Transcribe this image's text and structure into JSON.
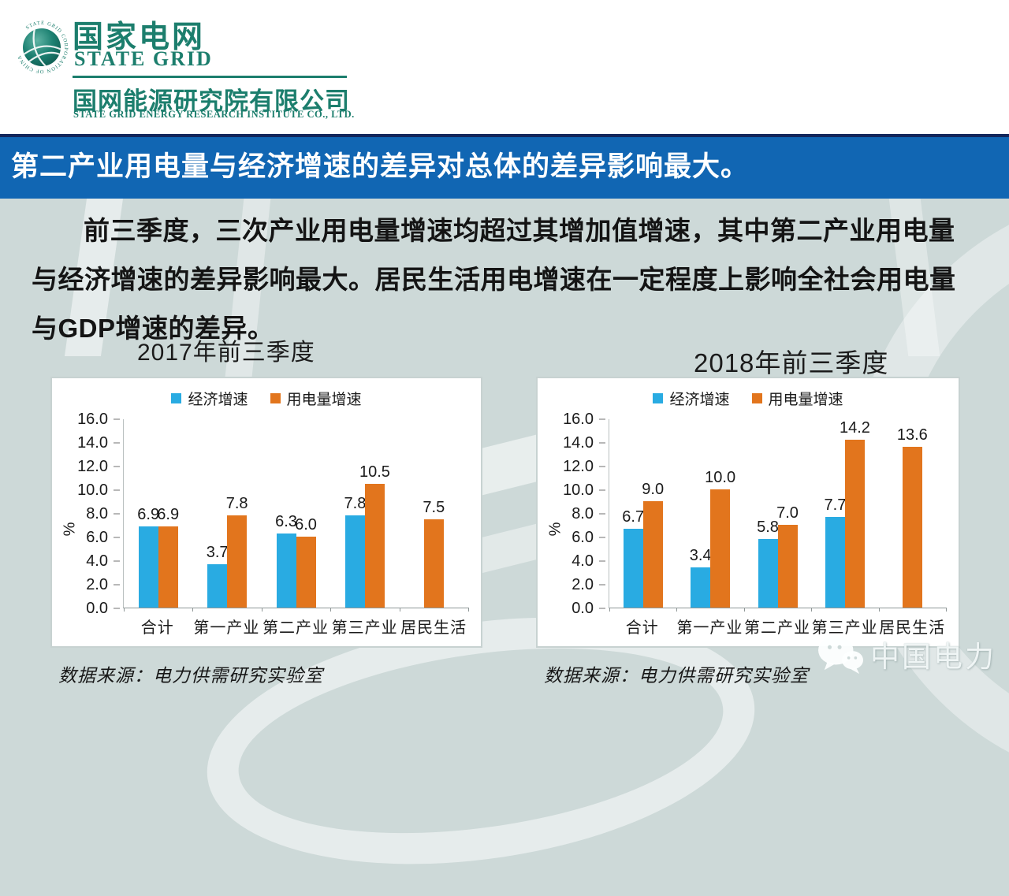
{
  "header": {
    "brand_cn": "国家电网",
    "brand_en": "State Grid",
    "logo_ring_text": "STATE GRID CORPORATION OF CHINA",
    "org_cn": "国网能源研究院有限公司",
    "org_en": "STATE GRID ENERGY RESEARCH INSTITUTE CO., LTD."
  },
  "banner": {
    "title": "第二产业用电量与经济增速的差异对总体的差异影响最大。"
  },
  "paragraph": "前三季度，三次产业用电量增速均超过其增加值增速，其中第二产业用电量与经济增速的差异影响最大。居民生活用电增速在一定程度上影响全社会用电量与GDP增速的差异。",
  "watermark": {
    "icon": "wechat-icon",
    "label": "中国电力"
  },
  "colors": {
    "banner_blue": "#1166b3",
    "banner_navy": "#12265b",
    "brand_green": "#1c7e6d",
    "series_blue": "#29abe2",
    "series_orange": "#e2751d",
    "page_bg": "#cdd9d8"
  },
  "chart_data": [
    {
      "type": "bar",
      "title": "2017年前三季度",
      "categories": [
        "合计",
        "第一产业",
        "第二产业",
        "第三产业",
        "居民生活"
      ],
      "series": [
        {
          "name": "经济增速",
          "color": "#29abe2",
          "values": [
            6.9,
            3.7,
            6.3,
            7.8,
            null
          ]
        },
        {
          "name": "用电量增速",
          "color": "#e2751d",
          "values": [
            6.9,
            7.8,
            6.0,
            10.5,
            7.5
          ]
        }
      ],
      "xlabel": "",
      "ylabel": "%",
      "ylim": [
        0,
        16
      ],
      "ytick_step": 2,
      "grid": false,
      "legend_position": "top",
      "source": "数据来源：电力供需研究实验室"
    },
    {
      "type": "bar",
      "title": "2018年前三季度",
      "categories": [
        "合计",
        "第一产业",
        "第二产业",
        "第三产业",
        "居民生活"
      ],
      "series": [
        {
          "name": "经济增速",
          "color": "#29abe2",
          "values": [
            6.7,
            3.4,
            5.8,
            7.7,
            null
          ]
        },
        {
          "name": "用电量增速",
          "color": "#e2751d",
          "values": [
            9.0,
            10.0,
            7.0,
            14.2,
            13.6
          ]
        }
      ],
      "xlabel": "",
      "ylabel": "%",
      "ylim": [
        0,
        16
      ],
      "ytick_step": 2,
      "grid": false,
      "legend_position": "top",
      "source": "数据来源：电力供需研究实验室"
    }
  ]
}
